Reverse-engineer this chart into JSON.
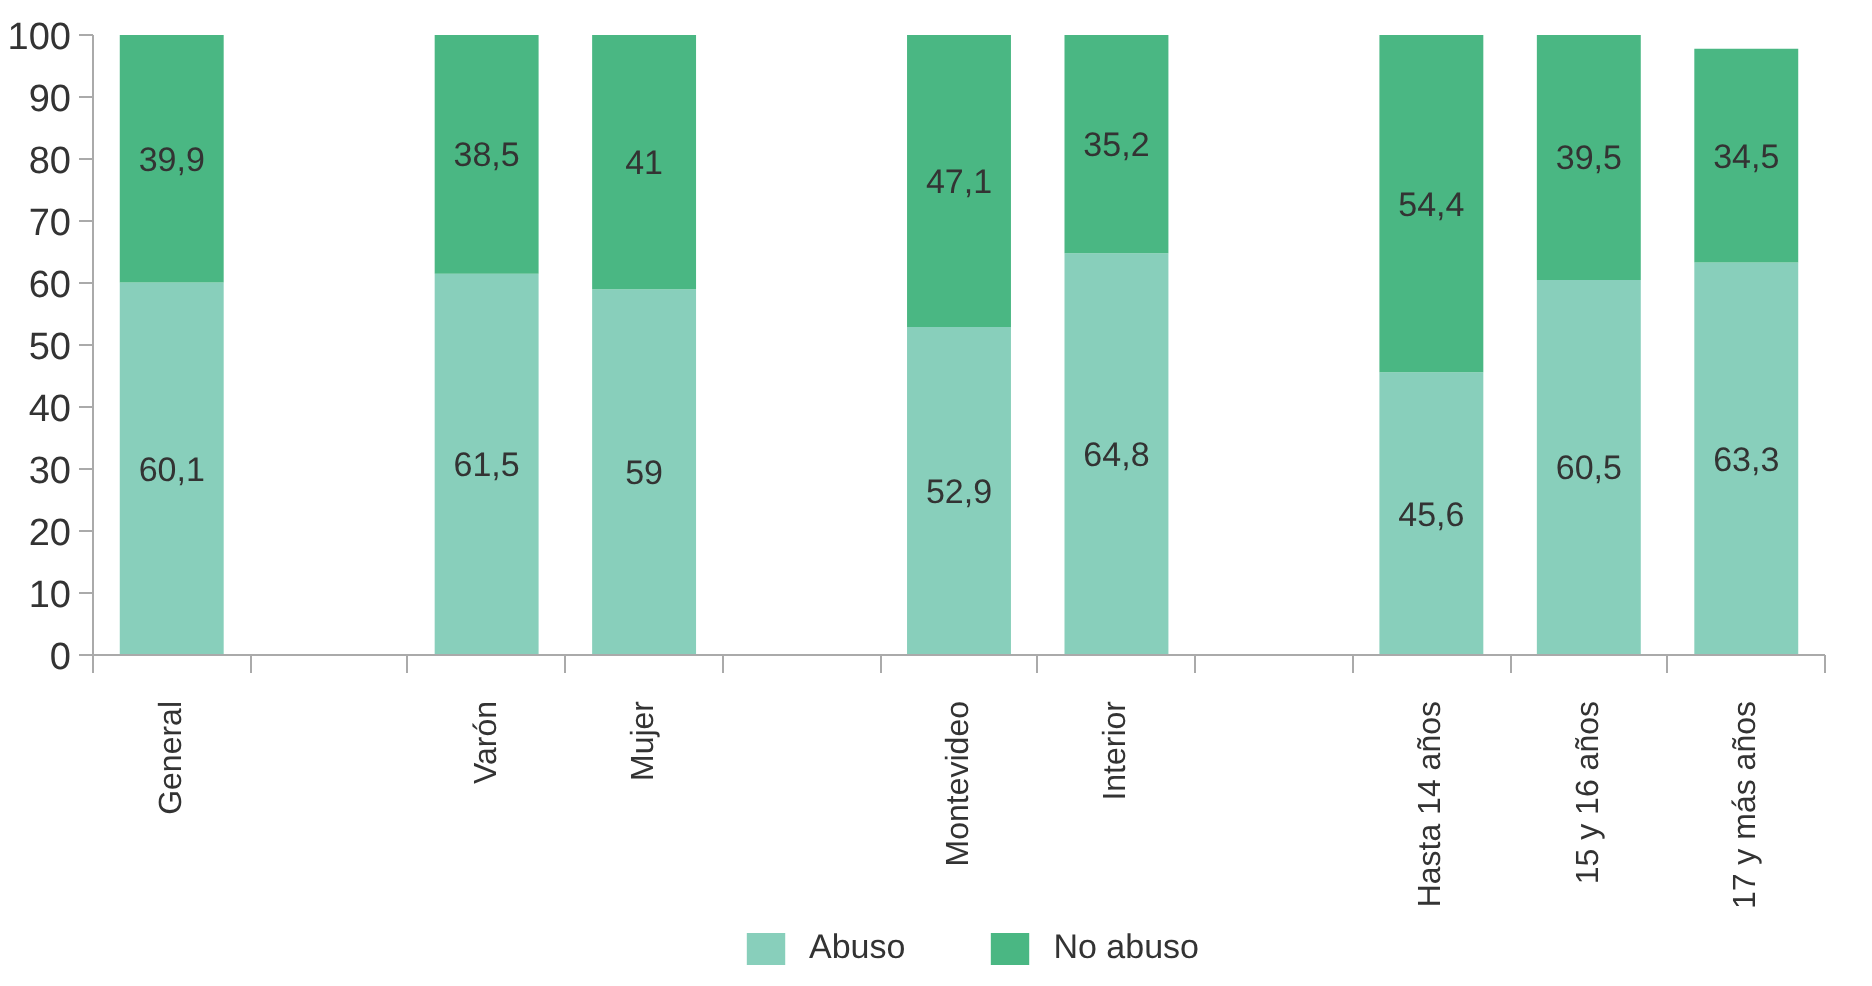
{
  "chart_data": {
    "type": "bar",
    "stacked": true,
    "categories": [
      "General",
      null,
      "Varón",
      "Mujer",
      null,
      "Montevideo",
      "Interior",
      null,
      "Hasta 14 años",
      "15 y 16 años",
      "17 y más años"
    ],
    "series": [
      {
        "name": "Abuso",
        "color": "#88cfbb",
        "values": [
          60.1,
          null,
          61.5,
          59,
          null,
          52.9,
          64.8,
          null,
          45.6,
          60.5,
          63.3
        ],
        "value_labels": [
          "60,1",
          null,
          "61,5",
          "59",
          null,
          "52,9",
          "64,8",
          null,
          "45,6",
          "60,5",
          "63,3"
        ]
      },
      {
        "name": "No abuso",
        "color": "#4ab783",
        "values": [
          39.9,
          null,
          38.5,
          41,
          null,
          47.1,
          35.2,
          null,
          54.4,
          39.5,
          34.5
        ],
        "value_labels": [
          "39,9",
          null,
          "38,5",
          "41",
          null,
          "47,1",
          "35,2",
          null,
          "54,4",
          "39,5",
          "34,5"
        ]
      }
    ],
    "ylim": [
      0,
      100
    ],
    "yticks": [
      0,
      10,
      20,
      30,
      40,
      50,
      60,
      70,
      80,
      90,
      100
    ],
    "grid": false,
    "legend": "bottom"
  }
}
